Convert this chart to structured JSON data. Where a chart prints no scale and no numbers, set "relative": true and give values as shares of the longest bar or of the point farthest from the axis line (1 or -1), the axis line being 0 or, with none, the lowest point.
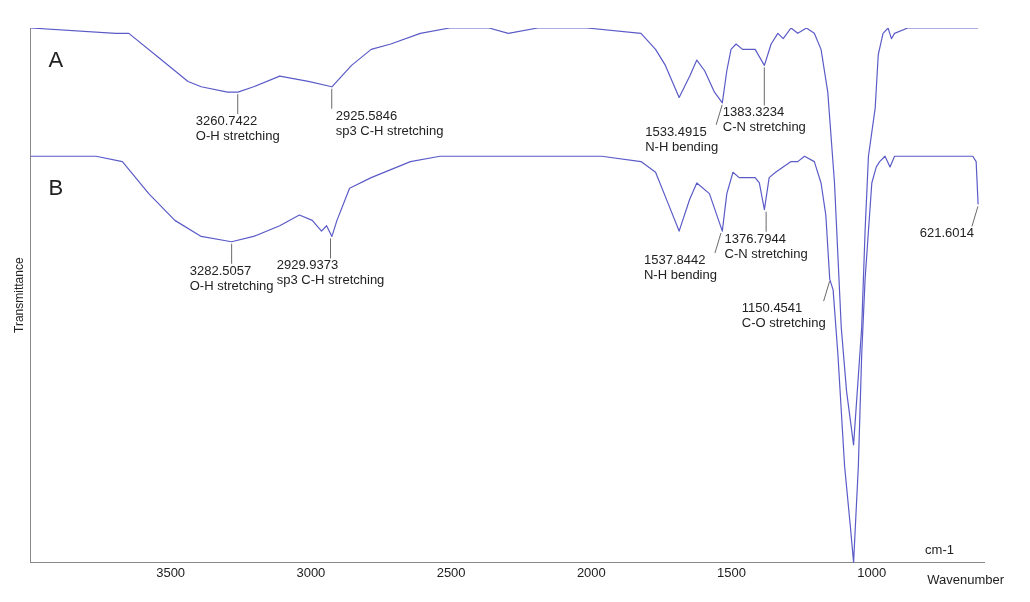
{
  "chart_data": {
    "type": "line",
    "relative": true,
    "xlabel": "Wavenumber",
    "ylabel": "Transmittance",
    "xlim": [
      4000,
      600
    ],
    "xticks": [
      3500,
      3000,
      2500,
      2000,
      1500,
      1000
    ],
    "grid": false,
    "legend": false,
    "marker": "none",
    "line_style": "solid",
    "series": [
      {
        "name": "A",
        "color": "#5b5bc8",
        "x": [
          4000,
          3696,
          3649,
          3532,
          3438,
          3391,
          3297,
          3260,
          3204,
          3111,
          3009,
          2925,
          2855,
          2785,
          2715,
          2610,
          2505,
          2365,
          2296,
          2191,
          2016,
          1823,
          1771,
          1736,
          1687,
          1649,
          1624,
          1596,
          1561,
          1533,
          1517,
          1502,
          1484,
          1461,
          1416,
          1383,
          1359,
          1335,
          1316,
          1288,
          1264,
          1233,
          1205,
          1181,
          1157,
          1133,
          1109,
          1090,
          1065,
          1036,
          1024,
          1012,
          988,
          977,
          960,
          942,
          930,
          919,
          872,
          779,
          686,
          621
        ],
        "values": [
          1.0,
          0.99,
          0.99,
          0.94,
          0.9,
          0.89,
          0.88,
          0.88,
          0.89,
          0.91,
          0.9,
          0.89,
          0.93,
          0.96,
          0.97,
          0.99,
          1.0,
          1.0,
          0.99,
          1.0,
          1.0,
          0.99,
          0.96,
          0.93,
          0.87,
          0.91,
          0.94,
          0.92,
          0.88,
          0.86,
          0.92,
          0.96,
          0.97,
          0.96,
          0.96,
          0.93,
          0.97,
          0.99,
          0.98,
          1.0,
          0.99,
          1.0,
          0.99,
          0.96,
          0.88,
          0.71,
          0.44,
          0.32,
          0.22,
          0.44,
          0.62,
          0.76,
          0.85,
          0.95,
          0.99,
          1.0,
          0.98,
          0.99,
          1.0,
          1.0,
          1.0,
          1.0
        ]
      },
      {
        "name": "B",
        "color": "#5b5bc8",
        "x": [
          4000,
          3766,
          3672,
          3578,
          3485,
          3391,
          3283,
          3204,
          3111,
          3041,
          2995,
          2962,
          2944,
          2925,
          2907,
          2862,
          2785,
          2645,
          2540,
          2296,
          1963,
          1823,
          1771,
          1725,
          1687,
          1649,
          1624,
          1579,
          1533,
          1517,
          1495,
          1473,
          1439,
          1416,
          1401,
          1383,
          1366,
          1343,
          1288,
          1264,
          1240,
          1205,
          1181,
          1164,
          1150,
          1138,
          1121,
          1097,
          1077,
          1065,
          1048,
          1036,
          1024,
          1012,
          1000,
          984,
          972,
          953,
          935,
          919,
          849,
          756,
          640,
          628,
          621
        ],
        "values": [
          0.76,
          0.76,
          0.75,
          0.69,
          0.64,
          0.61,
          0.6,
          0.61,
          0.63,
          0.65,
          0.64,
          0.62,
          0.63,
          0.61,
          0.64,
          0.7,
          0.72,
          0.75,
          0.76,
          0.76,
          0.76,
          0.75,
          0.73,
          0.67,
          0.62,
          0.68,
          0.71,
          0.69,
          0.62,
          0.69,
          0.73,
          0.72,
          0.72,
          0.72,
          0.71,
          0.66,
          0.72,
          0.73,
          0.75,
          0.75,
          0.76,
          0.75,
          0.71,
          0.65,
          0.53,
          0.51,
          0.39,
          0.18,
          0.07,
          0.0,
          0.18,
          0.39,
          0.53,
          0.62,
          0.71,
          0.74,
          0.75,
          0.76,
          0.74,
          0.76,
          0.76,
          0.76,
          0.76,
          0.75,
          0.67
        ]
      }
    ],
    "annotations": [
      {
        "text": "3260.7422\nO-H stretching",
        "x": 3260.7422,
        "y": 0.88
      },
      {
        "text": "2925.5846\nsp3 C-H stretching",
        "x": 2925.5846,
        "y": 0.89
      },
      {
        "text": "1533.4915\nN-H bending",
        "x": 1533.4915,
        "y": 0.86
      },
      {
        "text": "1383.3234\nC-N stretching",
        "x": 1383.3234,
        "y": 0.93
      },
      {
        "text": "3282.5057\nO-H stretching",
        "x": 3282.5057,
        "y": 0.6
      },
      {
        "text": "2929.9373\nsp3 C-H stretching",
        "x": 2929.9373,
        "y": 0.61
      },
      {
        "text": "1537.8442\nN-H bending",
        "x": 1537.8442,
        "y": 0.62
      },
      {
        "text": "1376.7944\nC-N stretching",
        "x": 1376.7944,
        "y": 0.66
      },
      {
        "text": "1150.4541\nC-O stretching",
        "x": 1150.4541,
        "y": 0.53
      },
      {
        "text": "621.6014",
        "x": 621.6014,
        "y": 0.67
      },
      "cm-1"
    ]
  }
}
